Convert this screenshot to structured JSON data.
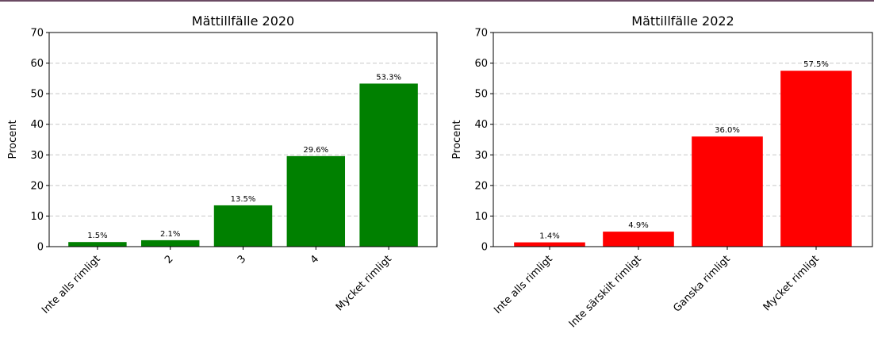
{
  "colors": {
    "chart_2020": "#008000",
    "chart_2022": "#ff0000"
  },
  "chart_data": [
    {
      "type": "bar",
      "title": "Mättillfälle 2020",
      "ylabel": "Procent",
      "xlabel": "",
      "ylim": [
        0,
        70
      ],
      "yticks": [
        0,
        10,
        20,
        30,
        40,
        50,
        60,
        70
      ],
      "grid": true,
      "categories": [
        "Inte alls rimligt",
        "2",
        "3",
        "4",
        "Mycket rimligt"
      ],
      "values": [
        1.5,
        2.1,
        13.5,
        29.6,
        53.3
      ],
      "data_labels": [
        "1.5%",
        "2.1%",
        "13.5%",
        "29.6%",
        "53.3%"
      ]
    },
    {
      "type": "bar",
      "title": "Mättillfälle 2022",
      "ylabel": "Procent",
      "xlabel": "",
      "ylim": [
        0,
        70
      ],
      "yticks": [
        0,
        10,
        20,
        30,
        40,
        50,
        60,
        70
      ],
      "grid": true,
      "categories": [
        "Inte alls rimligt",
        "Inte särskilt rimligt",
        "Ganska rimligt",
        "Mycket rimligt"
      ],
      "values": [
        1.4,
        4.9,
        36.0,
        57.5
      ],
      "data_labels": [
        "1.4%",
        "4.9%",
        "36.0%",
        "57.5%"
      ]
    }
  ]
}
